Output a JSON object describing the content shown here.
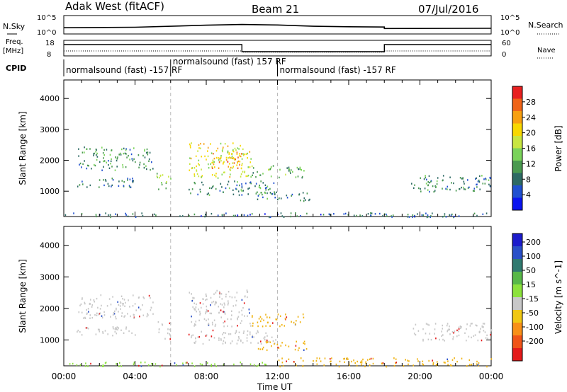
{
  "header": {
    "radar": "Adak West (fitACF)",
    "beam": "Beam 21",
    "date": "07/Jul/2016"
  },
  "strip_labels": {
    "nsky": "N.Sky",
    "nsky_top": "10^5",
    "nsky_bottom": "10^0",
    "nsearch": "N.Search",
    "nsearch_top": "10^5",
    "nsearch_bottom": "10^0",
    "freq": "Freq.",
    "freq_unit": "[MHz]",
    "freq_top": "18",
    "freq_bottom": "8",
    "nave": "Nave",
    "nave_top": "60",
    "nave_bottom": "0",
    "cpid": "CPID"
  },
  "cpid_segments": [
    {
      "label": "normalsound (fast) -157 RF",
      "start_hour": 0
    },
    {
      "label": "normalsound (fast) 157 RF",
      "start_hour": 6
    },
    {
      "label": "normalsound (fast) -157 RF",
      "start_hour": 12
    }
  ],
  "freq_trace": {
    "hours": [
      0,
      10,
      10,
      18,
      18,
      24
    ],
    "mhz": [
      15.5,
      15.5,
      10.5,
      10.5,
      15.5,
      15.5
    ]
  },
  "nave_trace": {
    "hours": [
      0,
      10,
      10,
      18,
      18,
      24
    ],
    "value": [
      18,
      18,
      13,
      13,
      18,
      18
    ]
  },
  "nsky_trace": {
    "hours": [
      0,
      4,
      8,
      10,
      12,
      14,
      16,
      18,
      18,
      24
    ],
    "value": [
      1.6,
      1.8,
      2.6,
      2.9,
      2.7,
      2.2,
      2.0,
      1.9,
      1.3,
      1.4
    ]
  },
  "chart_data": [
    {
      "type": "heatmap",
      "panel": "power",
      "ylabel": "Slant Range [km]",
      "xlabel": "Time UT",
      "xlim": [
        0,
        24
      ],
      "ylim": [
        180,
        4600
      ],
      "xticks": [
        "00:00",
        "04:00",
        "08:00",
        "12:00",
        "16:00",
        "20:00",
        "00:00"
      ],
      "yticks": [
        "1000",
        "2000",
        "3000",
        "4000"
      ],
      "colorbar": {
        "label": "Power [dB]",
        "ticks": [
          "4",
          "8",
          "12",
          "16",
          "20",
          "24",
          "28"
        ],
        "range": [
          0,
          30
        ],
        "colors": [
          "#0a14f0",
          "#2050d0",
          "#2d6a64",
          "#4a9a50",
          "#7ad35a",
          "#c8e640",
          "#f8d800",
          "#f8a010",
          "#f06418",
          "#e82020"
        ]
      },
      "regions": [
        {
          "t0": 0.8,
          "t1": 5.0,
          "r0": 1700,
          "r1": 2450,
          "level": 9
        },
        {
          "t0": 0.6,
          "t1": 4.0,
          "r0": 1150,
          "r1": 1450,
          "level": 7
        },
        {
          "t0": 5.2,
          "t1": 6.0,
          "r0": 1050,
          "r1": 1600,
          "level": 14
        },
        {
          "t0": 7.0,
          "t1": 10.5,
          "r0": 1450,
          "r1": 2600,
          "level": 18
        },
        {
          "t0": 8.3,
          "t1": 10.0,
          "r0": 1750,
          "r1": 2300,
          "level": 24
        },
        {
          "t0": 10.5,
          "t1": 13.5,
          "r0": 1450,
          "r1": 1850,
          "level": 11
        },
        {
          "t0": 7.0,
          "t1": 12.0,
          "r0": 900,
          "r1": 1350,
          "level": 8
        },
        {
          "t0": 10.8,
          "t1": 13.8,
          "r0": 700,
          "r1": 1000,
          "level": 7
        },
        {
          "t0": 19.5,
          "t1": 24.0,
          "r0": 1000,
          "r1": 1550,
          "level": 8
        },
        {
          "t0": 0.0,
          "t1": 24.0,
          "r0": 180,
          "r1": 320,
          "level": 6
        }
      ]
    },
    {
      "type": "heatmap",
      "panel": "velocity",
      "ylabel": "Slant Range [km]",
      "xlabel": "Time UT",
      "xlim": [
        0,
        24
      ],
      "ylim": [
        180,
        4600
      ],
      "xticks": [
        "00:00",
        "04:00",
        "08:00",
        "12:00",
        "16:00",
        "20:00",
        "00:00"
      ],
      "yticks": [
        "1000",
        "2000",
        "3000",
        "4000"
      ],
      "colorbar": {
        "label": "Velocity [m s^-1]",
        "ticks": [
          "200",
          "100",
          "50",
          "15",
          "-15",
          "-50",
          "-100",
          "-200"
        ],
        "colors": [
          "#1c1ccc",
          "#2a50c8",
          "#307a70",
          "#58b848",
          "#8ce23c",
          "#c8c8c8",
          "#f0c814",
          "#f89018",
          "#f05418",
          "#e41a1a"
        ]
      },
      "regions": [
        {
          "t0": 0.8,
          "t1": 5.0,
          "r0": 1700,
          "r1": 2450,
          "vel": "grey"
        },
        {
          "t0": 0.6,
          "t1": 4.0,
          "r0": 1150,
          "r1": 1450,
          "vel": "grey"
        },
        {
          "t0": 5.2,
          "t1": 6.0,
          "r0": 1050,
          "r1": 1600,
          "vel": "grey"
        },
        {
          "t0": 7.0,
          "t1": 10.5,
          "r0": 1450,
          "r1": 2600,
          "vel": "grey"
        },
        {
          "t0": 10.5,
          "t1": 13.5,
          "r0": 1450,
          "r1": 1850,
          "vel": "orange"
        },
        {
          "t0": 7.0,
          "t1": 12.0,
          "r0": 900,
          "r1": 1350,
          "vel": "grey"
        },
        {
          "t0": 10.8,
          "t1": 13.8,
          "r0": 700,
          "r1": 1000,
          "vel": "orange"
        },
        {
          "t0": 19.5,
          "t1": 24.0,
          "r0": 1000,
          "r1": 1550,
          "vel": "grey"
        },
        {
          "t0": 0.0,
          "t1": 12.0,
          "r0": 180,
          "r1": 320,
          "vel": "green"
        },
        {
          "t0": 12.0,
          "t1": 24.0,
          "r0": 180,
          "r1": 450,
          "vel": "orange"
        }
      ]
    }
  ]
}
